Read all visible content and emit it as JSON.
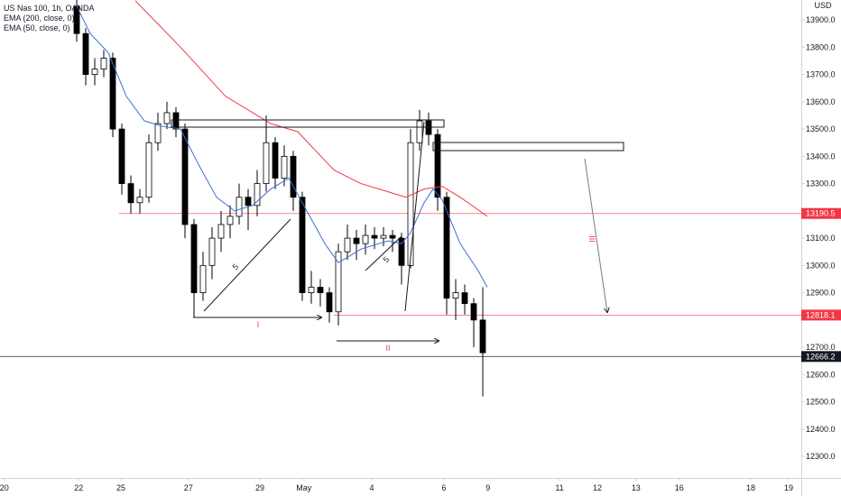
{
  "chart_data": {
    "type": "candlestick",
    "title": "US Nas 100, 1h, OANDA",
    "currency": "USD",
    "ylim": [
      12221,
      13973
    ],
    "xlim": [
      0,
      22.2
    ],
    "yticks": [
      {
        "value": 13900,
        "label": "13900.0"
      },
      {
        "value": 13800,
        "label": "13800.0"
      },
      {
        "value": 13700,
        "label": "13700.0"
      },
      {
        "value": 13600,
        "label": "13600.0"
      },
      {
        "value": 13500,
        "label": "13500.0"
      },
      {
        "value": 13400,
        "label": "13400.0"
      },
      {
        "value": 13300,
        "label": "13300.0"
      },
      {
        "value": 13100,
        "label": "13100.0"
      },
      {
        "value": 13000,
        "label": "13000.0"
      },
      {
        "value": 12900,
        "label": "12900.0"
      },
      {
        "value": 12700,
        "label": "12700.0"
      },
      {
        "value": 12600,
        "label": "12600.0"
      },
      {
        "value": 12500,
        "label": "12500.0"
      },
      {
        "value": 12400,
        "label": "12400.0"
      },
      {
        "value": 12300,
        "label": "12300.0"
      }
    ],
    "xticks": [
      {
        "value": 0.12,
        "label": "20"
      },
      {
        "value": 2.18,
        "label": "22"
      },
      {
        "value": 3.35,
        "label": "25"
      },
      {
        "value": 5.22,
        "label": "27"
      },
      {
        "value": 7.2,
        "label": "29"
      },
      {
        "value": 8.42,
        "label": "May"
      },
      {
        "value": 10.3,
        "label": "4"
      },
      {
        "value": 12.3,
        "label": "6"
      },
      {
        "value": 13.52,
        "label": "9"
      },
      {
        "value": 15.5,
        "label": "11"
      },
      {
        "value": 16.55,
        "label": "12"
      },
      {
        "value": 17.62,
        "label": "13"
      },
      {
        "value": 18.82,
        "label": "16"
      },
      {
        "value": 20.8,
        "label": "18"
      },
      {
        "value": 21.85,
        "label": "19"
      }
    ],
    "candles": {
      "up_color": "#ffffff",
      "down_color": "#000000",
      "x": [
        2.125,
        2.375,
        2.625,
        2.875,
        3.125,
        3.375,
        3.625,
        3.875,
        4.125,
        4.375,
        4.625,
        4.875,
        5.125,
        5.375,
        5.625,
        5.875,
        6.125,
        6.375,
        6.625,
        6.875,
        7.125,
        7.375,
        7.625,
        7.875,
        8.125,
        8.375,
        8.625,
        8.875,
        9.125,
        9.375,
        9.625,
        9.875,
        10.125,
        10.375,
        10.625,
        10.875,
        11.125,
        11.375,
        11.625,
        11.875,
        12.125,
        12.375,
        12.625,
        12.875,
        13.125,
        13.375
      ],
      "open": [
        13950,
        13850,
        13700,
        13720,
        13760,
        13500,
        13300,
        13230,
        13250,
        13450,
        13520,
        13560,
        13500,
        13150,
        12900,
        13000,
        13100,
        13150,
        13180,
        13250,
        13220,
        13300,
        13450,
        13320,
        13400,
        13250,
        12900,
        12920,
        12900,
        12830,
        13050,
        13100,
        13080,
        13110,
        13100,
        13110,
        13100,
        13000,
        13450,
        13530,
        13480,
        13250,
        12880,
        12900,
        12860,
        12800
      ],
      "high": [
        13980,
        13870,
        13760,
        13790,
        13780,
        13520,
        13330,
        13280,
        13480,
        13560,
        13600,
        13580,
        13520,
        13170,
        13050,
        13140,
        13200,
        13220,
        13300,
        13280,
        13350,
        13550,
        13470,
        13440,
        13420,
        13270,
        12980,
        12950,
        12920,
        13080,
        13150,
        13130,
        13150,
        13140,
        13140,
        13130,
        13120,
        13500,
        13570,
        13560,
        13500,
        13270,
        12950,
        12930,
        12880,
        12920
      ],
      "low": [
        13820,
        13660,
        13660,
        13690,
        13470,
        13260,
        13190,
        13190,
        13230,
        13420,
        13500,
        13470,
        13100,
        12810,
        12870,
        12950,
        13050,
        13100,
        13150,
        13130,
        13180,
        13270,
        13280,
        13290,
        13200,
        12870,
        12860,
        12850,
        12790,
        12780,
        13020,
        13020,
        13040,
        13060,
        13070,
        13050,
        12930,
        12990,
        13420,
        13440,
        13200,
        12820,
        12800,
        12820,
        12700,
        12520
      ],
      "close": [
        13850,
        13700,
        13720,
        13760,
        13500,
        13300,
        13230,
        13250,
        13450,
        13520,
        13560,
        13500,
        13150,
        12900,
        13000,
        13100,
        13150,
        13180,
        13250,
        13220,
        13300,
        13450,
        13320,
        13400,
        13250,
        12900,
        12920,
        12900,
        12830,
        13050,
        13100,
        13080,
        13110,
        13100,
        13110,
        13100,
        13000,
        13450,
        13530,
        13480,
        13250,
        12880,
        12900,
        12860,
        12800,
        12680
      ]
    },
    "lines": [
      {
        "name": "EMA (200, close, 0)",
        "color": "#f23645",
        "x": [
          3.75,
          5,
          6.25,
          7.5,
          8.25,
          8.75,
          9.25,
          10,
          10.75,
          11.25,
          11.75,
          12.25,
          12.75,
          13.5
        ],
        "values": [
          13970,
          13800,
          13620,
          13520,
          13490,
          13420,
          13350,
          13300,
          13270,
          13250,
          13280,
          13290,
          13250,
          13180
        ]
      },
      {
        "name": "EMA (50, close, 0)",
        "color": "#3d6fd1",
        "x": [
          2.125,
          2.5,
          3,
          3.5,
          4,
          4.5,
          5,
          5.5,
          6,
          6.5,
          7,
          7.5,
          8,
          8.5,
          9,
          9.375,
          10,
          10.75,
          11.125,
          11.375,
          11.75,
          12,
          12.25,
          12.75,
          13.25,
          13.5
        ],
        "values": [
          13950,
          13850,
          13780,
          13620,
          13530,
          13510,
          13500,
          13370,
          13250,
          13200,
          13220,
          13280,
          13320,
          13200,
          13080,
          13010,
          13060,
          13090,
          13080,
          13120,
          13230,
          13280,
          13240,
          13080,
          12980,
          12920
        ]
      }
    ],
    "levels": [
      {
        "value": 13190.5,
        "color": "#f23645",
        "start": 3.3
      },
      {
        "value": 12818.1,
        "color": "#f23645",
        "start": 9.25
      },
      {
        "value": 12666.2,
        "color": "#131722",
        "start": 0
      }
    ],
    "annotations": [
      "I",
      "II",
      "III",
      "5",
      "5"
    ]
  }
}
